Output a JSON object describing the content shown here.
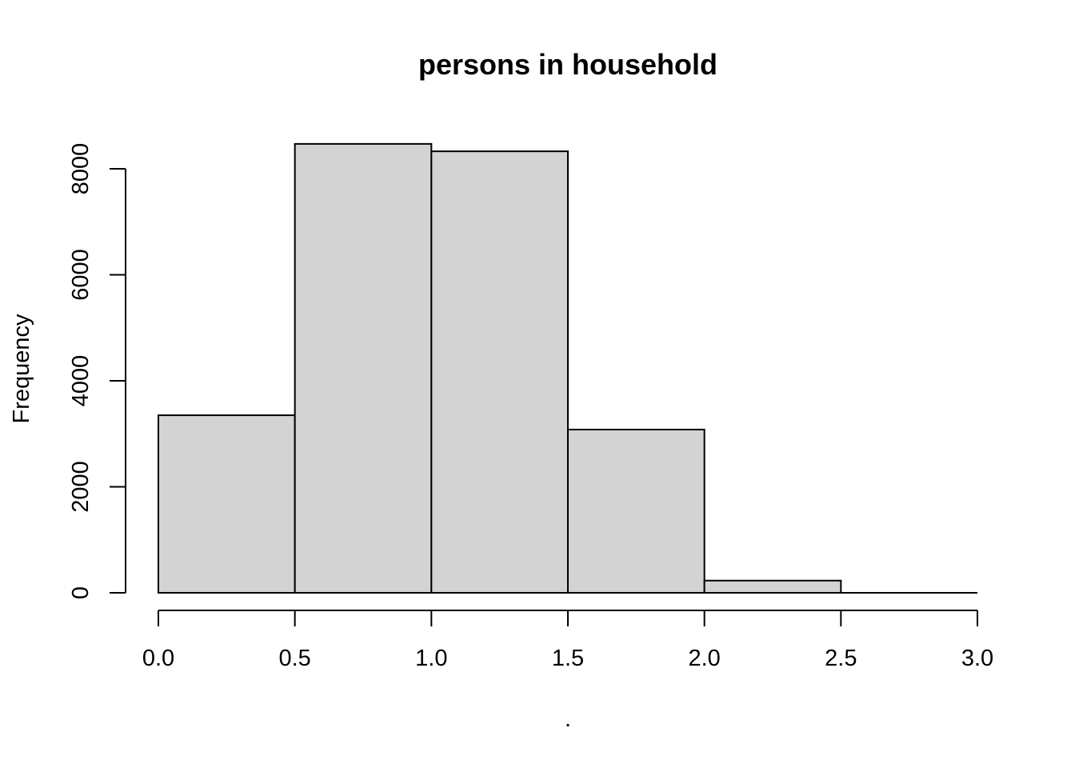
{
  "chart_data": {
    "type": "bar",
    "title": "persons in household",
    "xlabel": ".",
    "ylabel": "Frequency",
    "bins": [
      {
        "from": 0.0,
        "to": 0.5,
        "count": 3350
      },
      {
        "from": 0.5,
        "to": 1.0,
        "count": 8470
      },
      {
        "from": 1.0,
        "to": 1.5,
        "count": 8330
      },
      {
        "from": 1.5,
        "to": 2.0,
        "count": 3080
      },
      {
        "from": 2.0,
        "to": 2.5,
        "count": 230
      },
      {
        "from": 2.5,
        "to": 3.0,
        "count": 0
      }
    ],
    "xlim": [
      0.0,
      3.0
    ],
    "ylim": [
      0,
      8470
    ],
    "x_ticks": [
      "0.0",
      "0.5",
      "1.0",
      "1.5",
      "2.0",
      "2.5",
      "3.0"
    ],
    "y_ticks": [
      "0",
      "2000",
      "4000",
      "6000",
      "8000"
    ],
    "bar_color": "#d3d3d3",
    "grid": false
  }
}
